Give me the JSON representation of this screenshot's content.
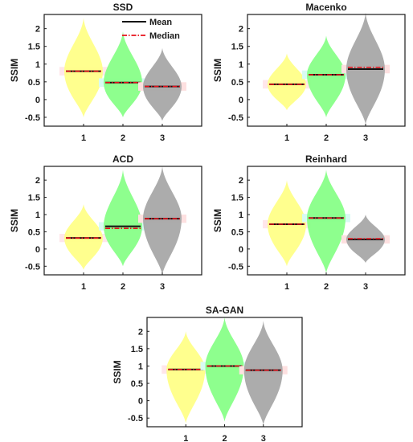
{
  "colors": {
    "violin": [
      "#ffff88",
      "#88ff88",
      "#a8a8a8"
    ],
    "shade": [
      "#ffe6ea",
      "#d8fbf3",
      "#fde0e0"
    ],
    "mean": "#111111",
    "median": "#e8101a"
  },
  "legend": {
    "mean": "Mean",
    "median": "Median"
  },
  "chart_data": [
    {
      "type": "violin",
      "title": "SSD",
      "ylabel": "SSIM",
      "categories": [
        "1",
        "2",
        "3"
      ],
      "ylim": [
        -0.75,
        2.4
      ],
      "yticks": [
        -0.5,
        0,
        0.5,
        1,
        1.5,
        2
      ],
      "legend": "top-right",
      "series": [
        {
          "category": "1",
          "mean": 0.8,
          "median": 0.8,
          "min": -0.5,
          "max": 2.3,
          "peak": 0.8
        },
        {
          "category": "2",
          "mean": 0.48,
          "median": 0.48,
          "min": -0.5,
          "max": 1.92,
          "peak": 0.48
        },
        {
          "category": "3",
          "mean": 0.37,
          "median": 0.37,
          "min": -0.6,
          "max": 1.45,
          "peak": 0.37
        }
      ]
    },
    {
      "type": "violin",
      "title": "Macenko",
      "ylabel": "SSIM",
      "categories": [
        "1",
        "2",
        "3"
      ],
      "ylim": [
        -0.75,
        2.4
      ],
      "yticks": [
        -0.5,
        0,
        0.5,
        1,
        1.5,
        2
      ],
      "series": [
        {
          "category": "1",
          "mean": 0.43,
          "median": 0.43,
          "min": -0.3,
          "max": 1.3,
          "peak": 0.43
        },
        {
          "category": "2",
          "mean": 0.7,
          "median": 0.7,
          "min": -0.5,
          "max": 1.8,
          "peak": 0.7
        },
        {
          "category": "3",
          "mean": 0.86,
          "median": 0.91,
          "min": -0.7,
          "max": 2.45,
          "peak": 0.86
        }
      ]
    },
    {
      "type": "violin",
      "title": "ACD",
      "ylabel": "SSIM",
      "categories": [
        "1",
        "2",
        "3"
      ],
      "ylim": [
        -0.75,
        2.4
      ],
      "yticks": [
        -0.5,
        0,
        0.5,
        1,
        1.5,
        2
      ],
      "series": [
        {
          "category": "1",
          "mean": 0.32,
          "median": 0.32,
          "min": -0.6,
          "max": 1.3,
          "peak": 0.32
        },
        {
          "category": "2",
          "mean": 0.66,
          "median": 0.6,
          "min": -0.5,
          "max": 2.3,
          "peak": 0.66
        },
        {
          "category": "3",
          "mean": 0.88,
          "median": 0.88,
          "min": -0.75,
          "max": 2.4,
          "peak": 0.88
        }
      ]
    },
    {
      "type": "violin",
      "title": "Reinhard",
      "ylabel": "SSIM",
      "categories": [
        "1",
        "2",
        "3"
      ],
      "ylim": [
        -0.75,
        2.4
      ],
      "yticks": [
        -0.5,
        0,
        0.5,
        1,
        1.5,
        2
      ],
      "series": [
        {
          "category": "1",
          "mean": 0.72,
          "median": 0.72,
          "min": -0.5,
          "max": 2.0,
          "peak": 0.72
        },
        {
          "category": "2",
          "mean": 0.9,
          "median": 0.9,
          "min": -0.7,
          "max": 2.3,
          "peak": 0.9
        },
        {
          "category": "3",
          "mean": 0.28,
          "median": 0.3,
          "min": -0.4,
          "max": 1.0,
          "peak": 0.28
        }
      ]
    },
    {
      "type": "violin",
      "title": "SA-GAN",
      "ylabel": "SSIM",
      "categories": [
        "1",
        "2",
        "3"
      ],
      "ylim": [
        -0.75,
        2.4
      ],
      "yticks": [
        -0.5,
        0,
        0.5,
        1,
        1.5,
        2
      ],
      "series": [
        {
          "category": "1",
          "mean": 0.9,
          "median": 0.9,
          "min": -0.65,
          "max": 2.0,
          "peak": 0.9
        },
        {
          "category": "2",
          "mean": 1.0,
          "median": 1.0,
          "min": -0.6,
          "max": 2.4,
          "peak": 1.0
        },
        {
          "category": "3",
          "mean": 0.88,
          "median": 0.88,
          "min": -0.7,
          "max": 2.3,
          "peak": 0.88
        }
      ]
    }
  ]
}
